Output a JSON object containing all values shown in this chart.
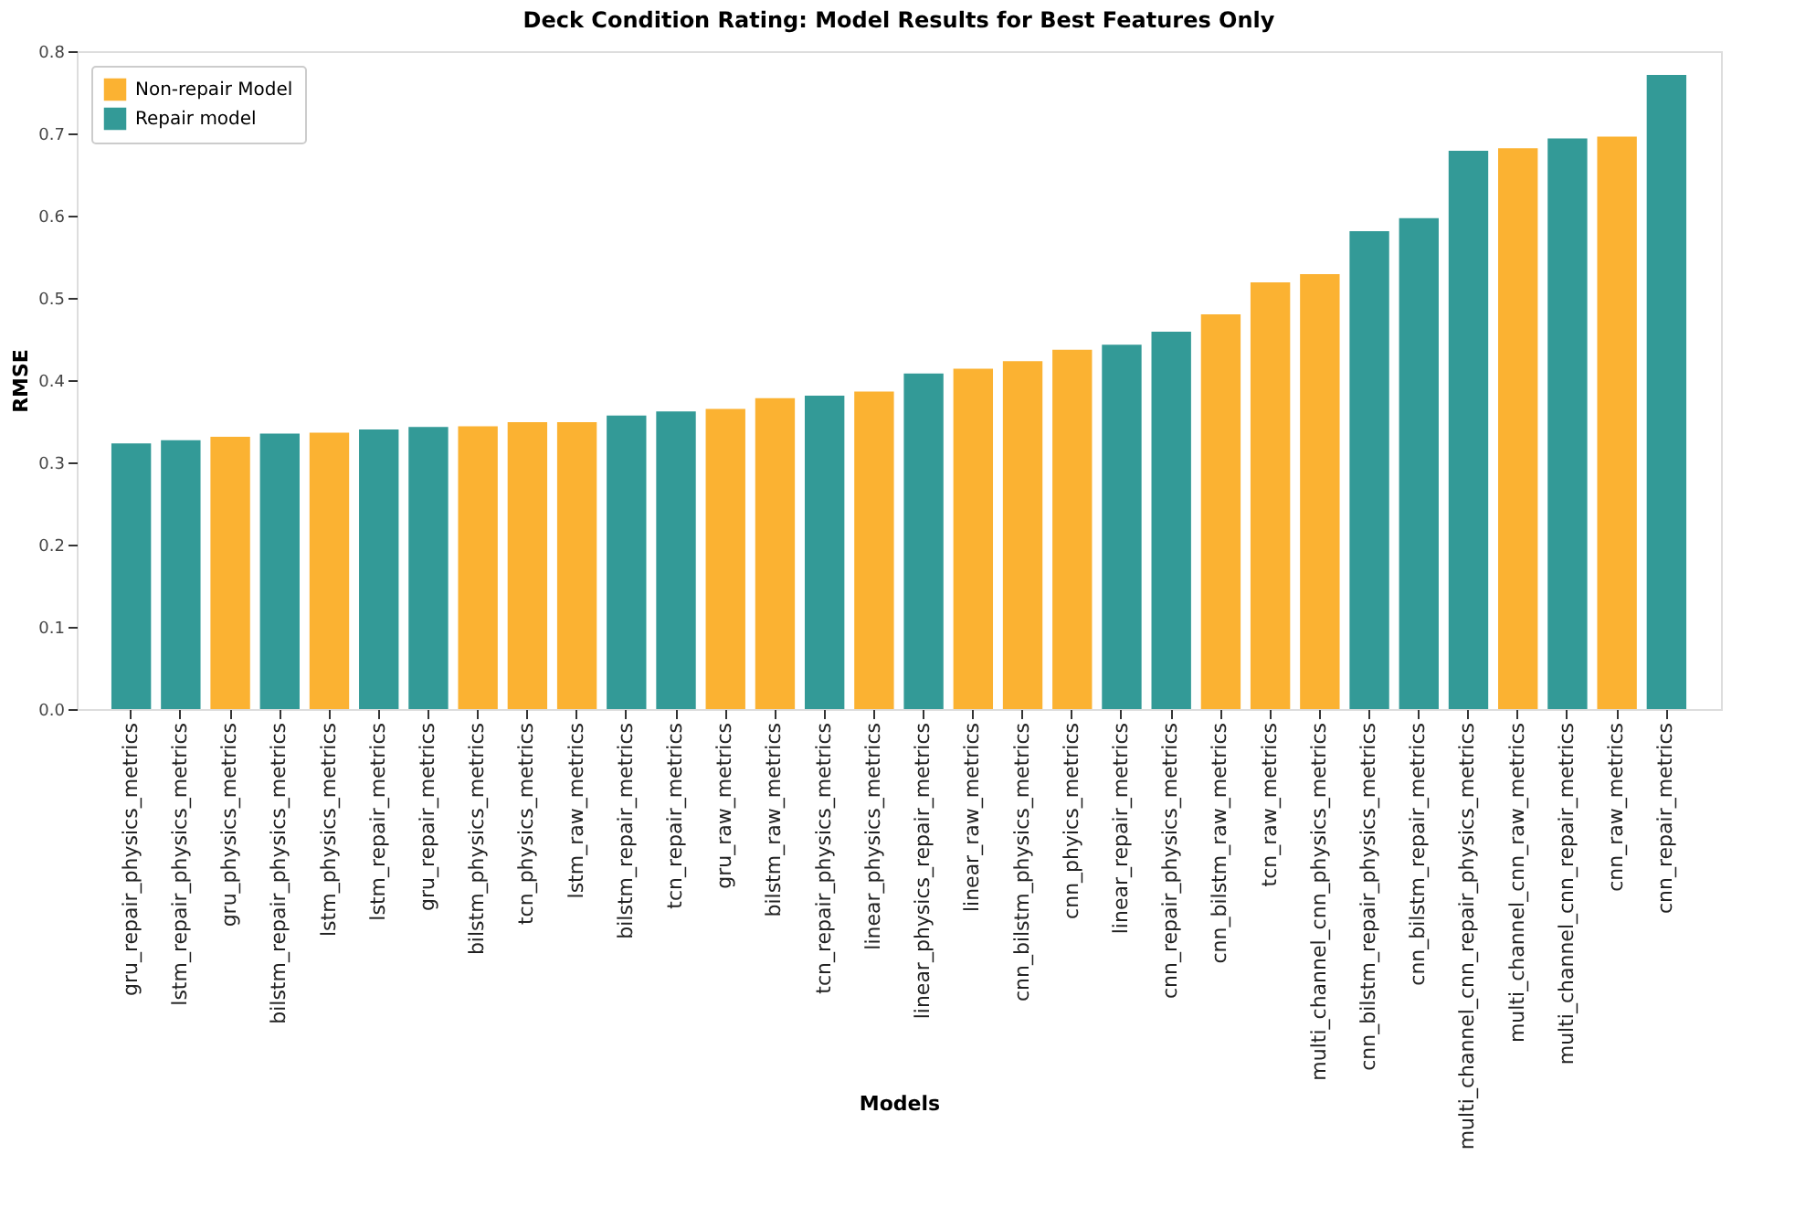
{
  "chart_data": {
    "type": "bar",
    "title": "Deck Condition Rating: Model Results for Best Features Only",
    "xlabel": "Models",
    "ylabel": "RMSE",
    "categories": [
      "gru_repair_physics_metrics",
      "lstm_repair_physics_metrics",
      "gru_physics_metrics",
      "bilstm_repair_physics_metrics",
      "lstm_physics_metrics",
      "lstm_repair_metrics",
      "gru_repair_metrics",
      "bilstm_physics_metrics",
      "tcn_physics_metrics",
      "lstm_raw_metrics",
      "bilstm_repair_metrics",
      "tcn_repair_metrics",
      "gru_raw_metrics",
      "bilstm_raw_metrics",
      "tcn_repair_physics_metrics",
      "linear_physics_metrics",
      "linear_physics_repair_metrics",
      "linear_raw_metrics",
      "cnn_bilstm_physics_metrics",
      "cnn_phyics_metrics",
      "linear_repair_metrics",
      "cnn_repair_physics_metrics",
      "cnn_bilstm_raw_metrics",
      "tcn_raw_metrics",
      "multi_channel_cnn_physics_metrics",
      "cnn_bilstm_repair_physics_metrics",
      "cnn_bilstm_repair_metrics",
      "multi_channel_cnn_repair_physics_metrics",
      "multi_channel_cnn_raw_metrics",
      "multi_channel_cnn_repair_metrics",
      "cnn_raw_metrics",
      "cnn_repair_metrics"
    ],
    "series": [
      {
        "name": "Non-repair Model",
        "color": "#fbb232",
        "values": [
          null,
          null,
          0.331,
          null,
          0.336,
          null,
          null,
          0.344,
          0.349,
          0.349,
          null,
          null,
          0.365,
          0.378,
          null,
          0.386,
          null,
          0.414,
          0.423,
          0.437,
          null,
          null,
          0.48,
          0.519,
          0.529,
          null,
          null,
          null,
          0.682,
          null,
          0.696,
          null
        ]
      },
      {
        "name": "Repair model",
        "color": "#339a97",
        "values": [
          0.323,
          0.327,
          null,
          0.335,
          null,
          0.34,
          0.343,
          null,
          null,
          null,
          0.357,
          0.362,
          null,
          null,
          0.381,
          null,
          0.408,
          null,
          null,
          null,
          0.443,
          0.459,
          null,
          null,
          null,
          0.581,
          0.597,
          0.679,
          null,
          0.694,
          null,
          0.771
        ]
      }
    ],
    "ylim": [
      0,
      0.8
    ],
    "yticks": [
      {
        "value": 0,
        "label": "0.0"
      },
      0.1,
      0.2,
      0.3,
      0.4,
      0.5,
      0.6,
      0.7,
      0.8
    ],
    "grid": false,
    "legend": "top left"
  }
}
